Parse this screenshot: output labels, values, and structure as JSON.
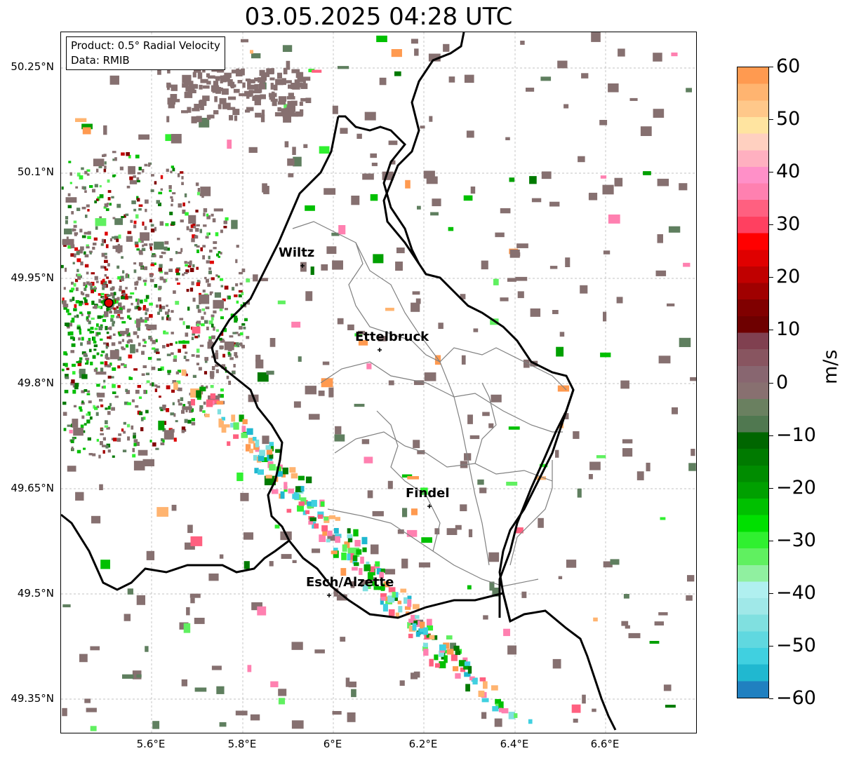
{
  "title": "03.05.2025 04:28 UTC",
  "info": {
    "product": "Product: 0.5° Radial Velocity",
    "source": "Data: RMIB"
  },
  "axes": {
    "lat_labels": [
      "50.25°N",
      "50.1°N",
      "49.95°N",
      "49.8°N",
      "49.65°N",
      "49.5°N",
      "49.35°N"
    ],
    "lon_labels": [
      "5.6°E",
      "5.8°E",
      "6°E",
      "6.2°E",
      "6.4°E",
      "6.6°E"
    ]
  },
  "cities": [
    {
      "name": "Wiltz"
    },
    {
      "name": "Ettelbruck"
    },
    {
      "name": "Findel"
    },
    {
      "name": "Esch/Alzette"
    }
  ],
  "radar_site": {
    "color": "#e00000"
  },
  "colorbar": {
    "unit": "m/s",
    "min": -60,
    "max": 60,
    "tick_labels": [
      "60",
      "50",
      "40",
      "30",
      "20",
      "10",
      "0",
      "−10",
      "−20",
      "−30",
      "−40",
      "−50",
      "−60"
    ],
    "colors_top_to_bottom": [
      "#ff9a50",
      "#ffb470",
      "#ffc88a",
      "#ffe4a0",
      "#ffd0c0",
      "#ffb0c0",
      "#ff90c8",
      "#ff80b0",
      "#ff6080",
      "#ff4060",
      "#ff0000",
      "#e00000",
      "#c00000",
      "#a00000",
      "#800000",
      "#6e0000",
      "#804050",
      "#885560",
      "#886670",
      "#887070",
      "#6a8060",
      "#507850",
      "#006600",
      "#007a00",
      "#008c00",
      "#00a000",
      "#00c000",
      "#00e000",
      "#30f030",
      "#60f060",
      "#90f0a0",
      "#b0f0f0",
      "#a0e8e8",
      "#80e0e0",
      "#60d8e0",
      "#40d0e0",
      "#20b8d0",
      "#2080c0"
    ]
  },
  "colors": {
    "border": "#000000",
    "commune_lines": "#808080",
    "grid": "#b0b0b0",
    "clutter": "#867070",
    "clutter_green": "#5f7f5f"
  }
}
